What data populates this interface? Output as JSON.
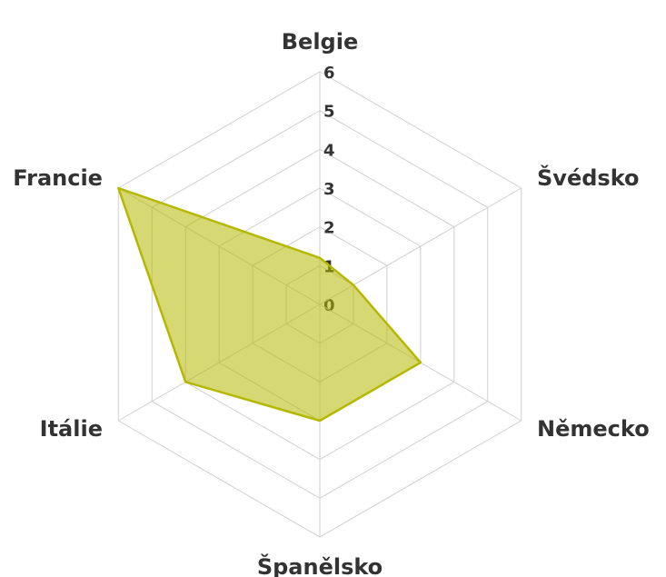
{
  "chart_data": {
    "type": "radar",
    "categories": [
      "Belgie",
      "Švédsko",
      "Německo",
      "Španělsko",
      "Itálie",
      "Francie"
    ],
    "series": [
      {
        "color": "#b5b800",
        "values": [
          1.2,
          1,
          3,
          3,
          4,
          6
        ]
      }
    ],
    "ylim": [
      0,
      6
    ],
    "yticks": [
      0,
      1,
      2,
      3,
      4,
      5,
      6
    ],
    "grid": true
  }
}
